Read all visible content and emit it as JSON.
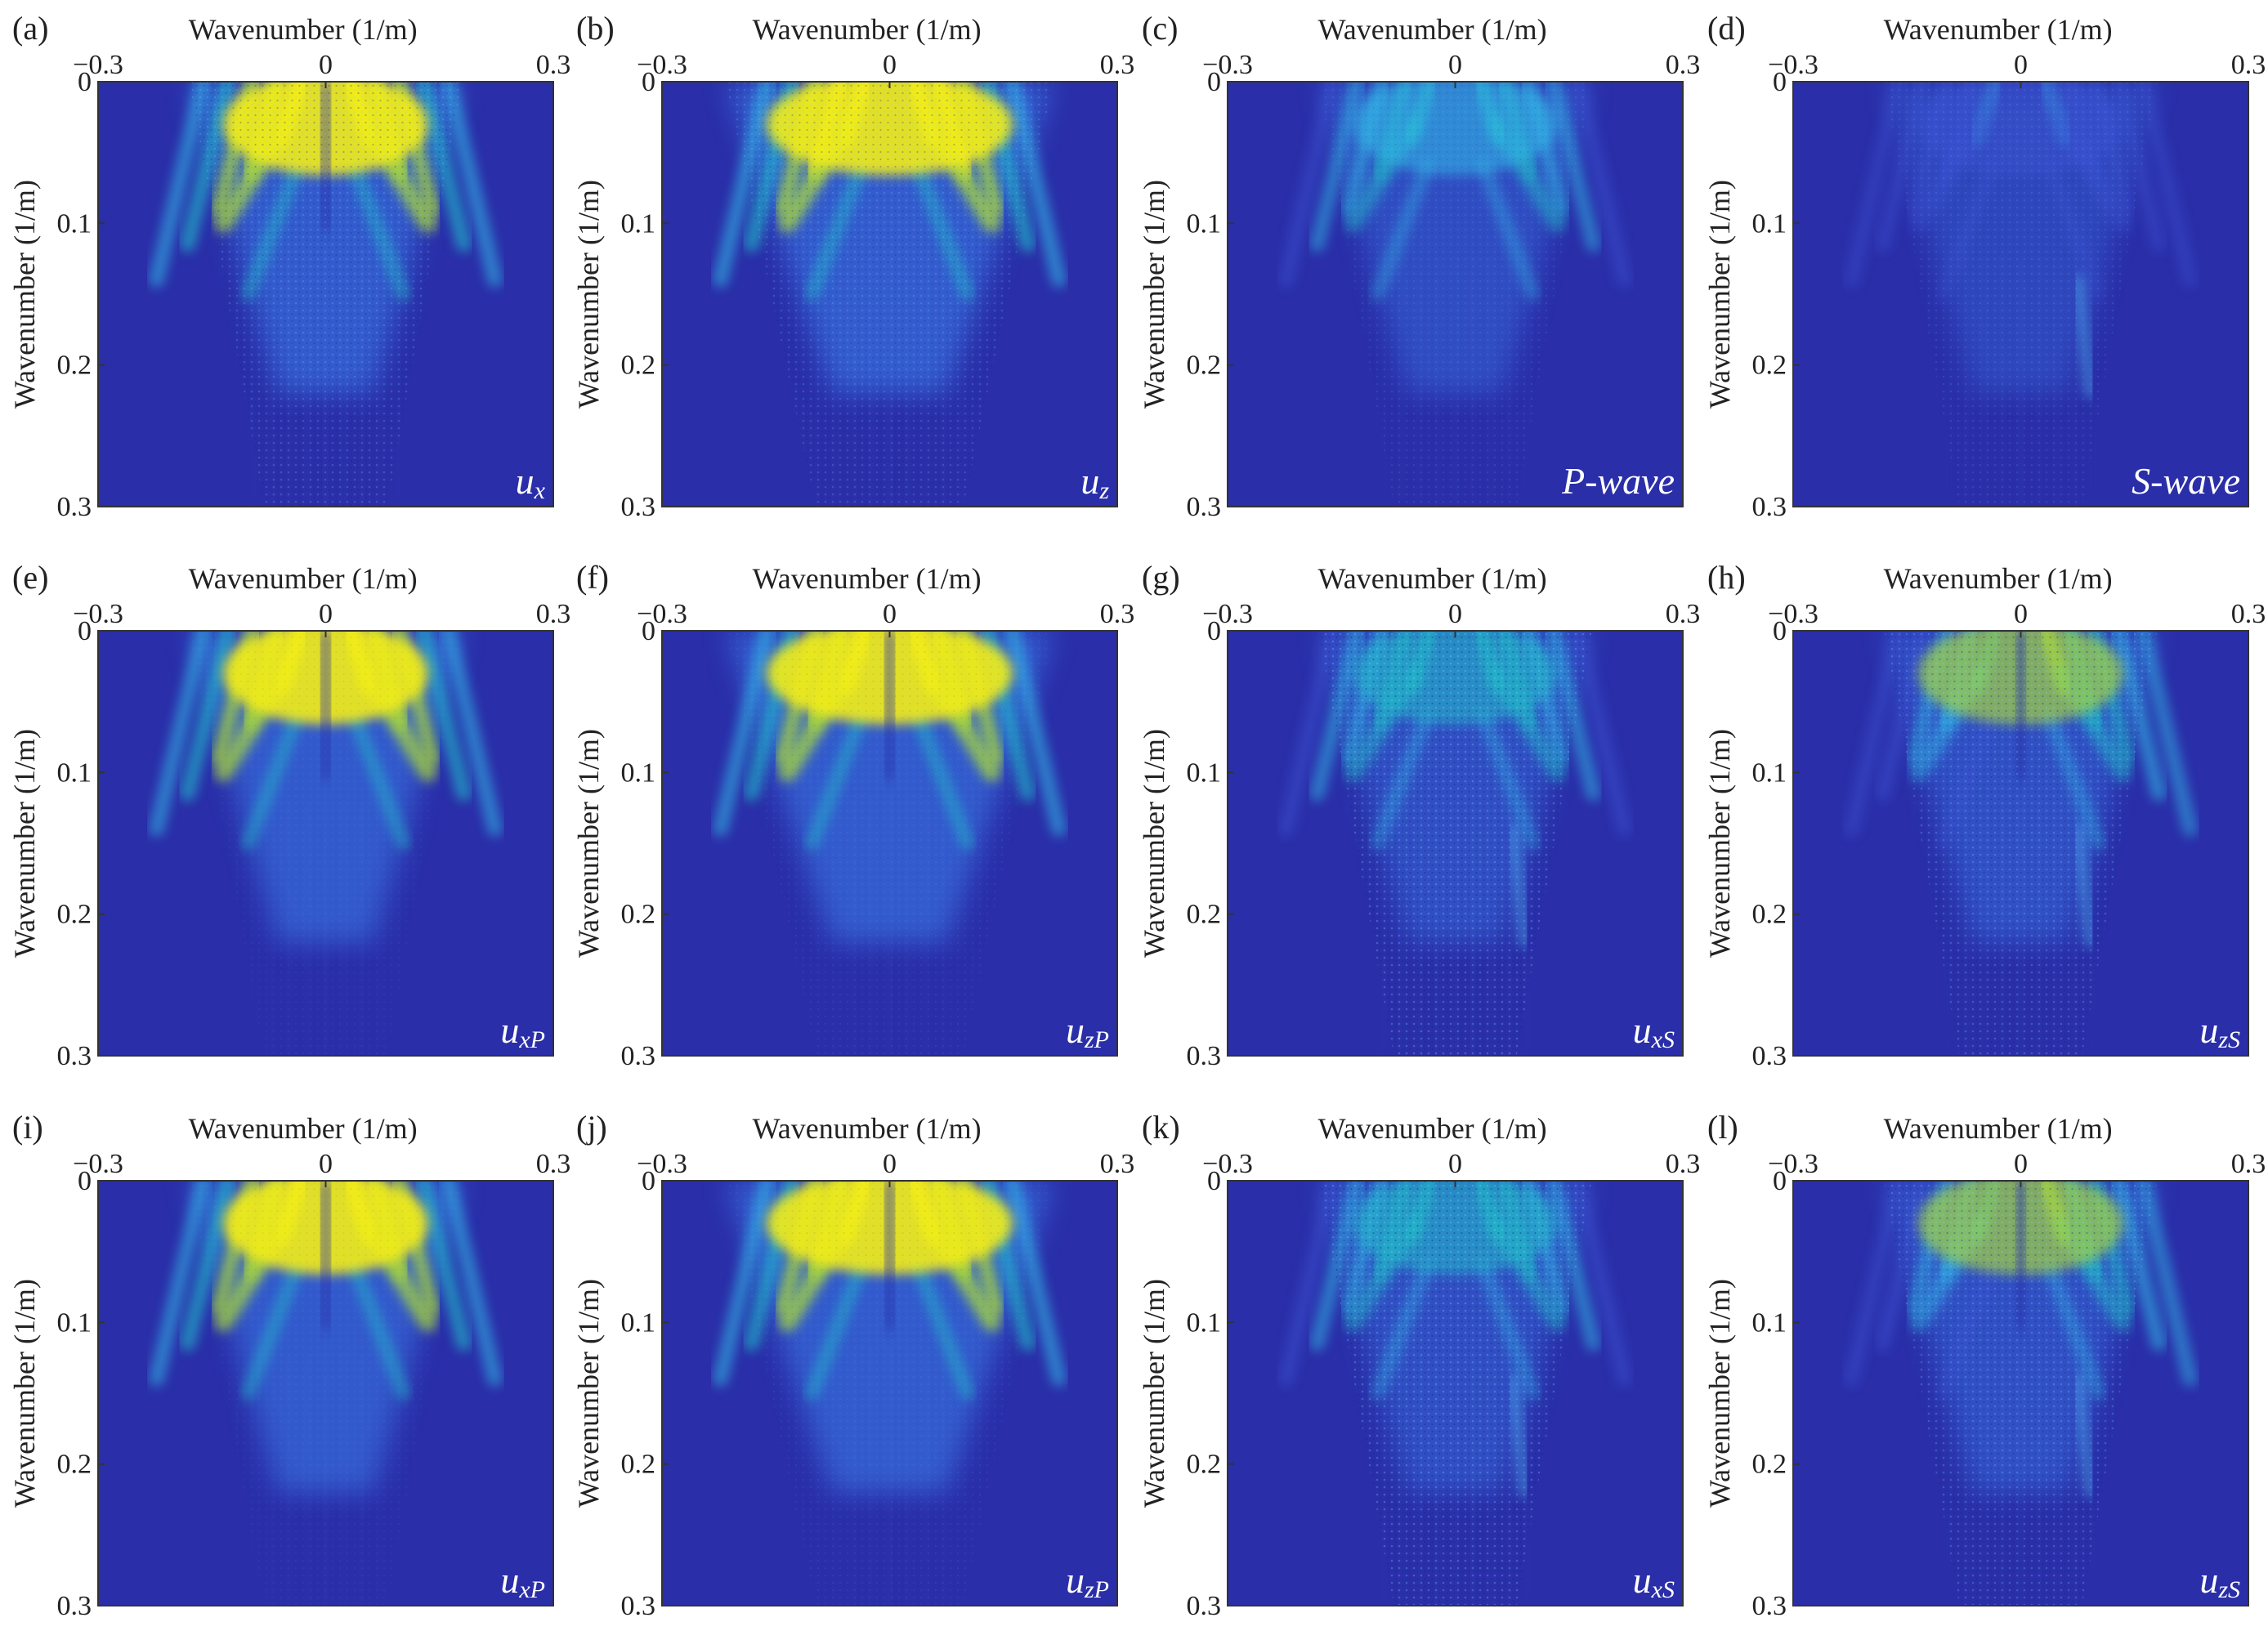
{
  "colors": {
    "background": "#2a2ea8",
    "yellow": "#f4ee12",
    "cyan": "#33bfe8",
    "axis": "#333333",
    "inset_label": "#ffffff"
  },
  "chart_data": [
    {
      "type": "heatmap",
      "panel_label": "(a)",
      "inset_label": "u",
      "inset_sub": "x",
      "inset_italic_full": false,
      "xlabel": "Wavenumber (1/m)",
      "ylabel": "Wavenumber (1/m)",
      "xlim": [
        -0.3,
        0.3
      ],
      "ylim": [
        0,
        0.3
      ],
      "x_ticks": [
        "−0.3",
        "0",
        "0.3"
      ],
      "y_ticks": [
        "0",
        "0.1",
        "0.2",
        "0.3"
      ],
      "pattern": "ux",
      "colormap": "parula"
    },
    {
      "type": "heatmap",
      "panel_label": "(b)",
      "inset_label": "u",
      "inset_sub": "z",
      "inset_italic_full": false,
      "xlabel": "Wavenumber (1/m)",
      "ylabel": "Wavenumber (1/m)",
      "xlim": [
        -0.3,
        0.3
      ],
      "ylim": [
        0,
        0.3
      ],
      "x_ticks": [
        "−0.3",
        "0",
        "0.3"
      ],
      "y_ticks": [
        "0",
        "0.1",
        "0.2",
        "0.3"
      ],
      "pattern": "uz",
      "colormap": "parula"
    },
    {
      "type": "heatmap",
      "panel_label": "(c)",
      "inset_label": "P-wave",
      "inset_sub": "",
      "inset_italic_full": true,
      "xlabel": "Wavenumber (1/m)",
      "ylabel": "Wavenumber (1/m)",
      "xlim": [
        -0.3,
        0.3
      ],
      "ylim": [
        0,
        0.3
      ],
      "x_ticks": [
        "−0.3",
        "0",
        "0.3"
      ],
      "y_ticks": [
        "0",
        "0.1",
        "0.2",
        "0.3"
      ],
      "pattern": "pwave",
      "colormap": "parula"
    },
    {
      "type": "heatmap",
      "panel_label": "(d)",
      "inset_label": "S-wave",
      "inset_sub": "",
      "inset_italic_full": true,
      "xlabel": "Wavenumber (1/m)",
      "ylabel": "Wavenumber (1/m)",
      "xlim": [
        -0.3,
        0.3
      ],
      "ylim": [
        0,
        0.3
      ],
      "x_ticks": [
        "−0.3",
        "0",
        "0.3"
      ],
      "y_ticks": [
        "0",
        "0.1",
        "0.2",
        "0.3"
      ],
      "pattern": "swave",
      "colormap": "parula"
    },
    {
      "type": "heatmap",
      "panel_label": "(e)",
      "inset_label": "u",
      "inset_sub": "xP",
      "inset_italic_full": false,
      "xlabel": "Wavenumber (1/m)",
      "ylabel": "Wavenumber (1/m)",
      "xlim": [
        -0.3,
        0.3
      ],
      "ylim": [
        0,
        0.3
      ],
      "x_ticks": [
        "−0.3",
        "0",
        "0.3"
      ],
      "y_ticks": [
        "0",
        "0.1",
        "0.2",
        "0.3"
      ],
      "pattern": "uxP",
      "colormap": "parula"
    },
    {
      "type": "heatmap",
      "panel_label": "(f)",
      "inset_label": "u",
      "inset_sub": "zP",
      "inset_italic_full": false,
      "xlabel": "Wavenumber (1/m)",
      "ylabel": "Wavenumber (1/m)",
      "xlim": [
        -0.3,
        0.3
      ],
      "ylim": [
        0,
        0.3
      ],
      "x_ticks": [
        "−0.3",
        "0",
        "0.3"
      ],
      "y_ticks": [
        "0",
        "0.1",
        "0.2",
        "0.3"
      ],
      "pattern": "uzP",
      "colormap": "parula"
    },
    {
      "type": "heatmap",
      "panel_label": "(g)",
      "inset_label": "u",
      "inset_sub": "xS",
      "inset_italic_full": false,
      "xlabel": "Wavenumber (1/m)",
      "ylabel": "Wavenumber (1/m)",
      "xlim": [
        -0.3,
        0.3
      ],
      "ylim": [
        0,
        0.3
      ],
      "x_ticks": [
        "−0.3",
        "0",
        "0.3"
      ],
      "y_ticks": [
        "0",
        "0.1",
        "0.2",
        "0.3"
      ],
      "pattern": "uxS",
      "colormap": "parula"
    },
    {
      "type": "heatmap",
      "panel_label": "(h)",
      "inset_label": "u",
      "inset_sub": "zS",
      "inset_italic_full": false,
      "xlabel": "Wavenumber (1/m)",
      "ylabel": "Wavenumber (1/m)",
      "xlim": [
        -0.3,
        0.3
      ],
      "ylim": [
        0,
        0.3
      ],
      "x_ticks": [
        "−0.3",
        "0",
        "0.3"
      ],
      "y_ticks": [
        "0",
        "0.1",
        "0.2",
        "0.3"
      ],
      "pattern": "uzS",
      "colormap": "parula"
    },
    {
      "type": "heatmap",
      "panel_label": "(i)",
      "inset_label": "u",
      "inset_sub": "xP",
      "inset_italic_full": false,
      "xlabel": "Wavenumber (1/m)",
      "ylabel": "Wavenumber (1/m)",
      "xlim": [
        -0.3,
        0.3
      ],
      "ylim": [
        0,
        0.3
      ],
      "x_ticks": [
        "−0.3",
        "0",
        "0.3"
      ],
      "y_ticks": [
        "0",
        "0.1",
        "0.2",
        "0.3"
      ],
      "pattern": "uxP",
      "colormap": "parula"
    },
    {
      "type": "heatmap",
      "panel_label": "(j)",
      "inset_label": "u",
      "inset_sub": "zP",
      "inset_italic_full": false,
      "xlabel": "Wavenumber (1/m)",
      "ylabel": "Wavenumber (1/m)",
      "xlim": [
        -0.3,
        0.3
      ],
      "ylim": [
        0,
        0.3
      ],
      "x_ticks": [
        "−0.3",
        "0",
        "0.3"
      ],
      "y_ticks": [
        "0",
        "0.1",
        "0.2",
        "0.3"
      ],
      "pattern": "uzP",
      "colormap": "parula"
    },
    {
      "type": "heatmap",
      "panel_label": "(k)",
      "inset_label": "u",
      "inset_sub": "xS",
      "inset_italic_full": false,
      "xlabel": "Wavenumber (1/m)",
      "ylabel": "Wavenumber (1/m)",
      "xlim": [
        -0.3,
        0.3
      ],
      "ylim": [
        0,
        0.3
      ],
      "x_ticks": [
        "−0.3",
        "0",
        "0.3"
      ],
      "y_ticks": [
        "0",
        "0.1",
        "0.2",
        "0.3"
      ],
      "pattern": "uxS",
      "colormap": "parula"
    },
    {
      "type": "heatmap",
      "panel_label": "(l)",
      "inset_label": "u",
      "inset_sub": "zS",
      "inset_italic_full": false,
      "xlabel": "Wavenumber (1/m)",
      "ylabel": "Wavenumber (1/m)",
      "xlim": [
        -0.3,
        0.3
      ],
      "ylim": [
        0,
        0.3
      ],
      "x_ticks": [
        "−0.3",
        "0",
        "0.3"
      ],
      "y_ticks": [
        "0",
        "0.1",
        "0.2",
        "0.3"
      ],
      "pattern": "uzS",
      "colormap": "parula"
    }
  ]
}
